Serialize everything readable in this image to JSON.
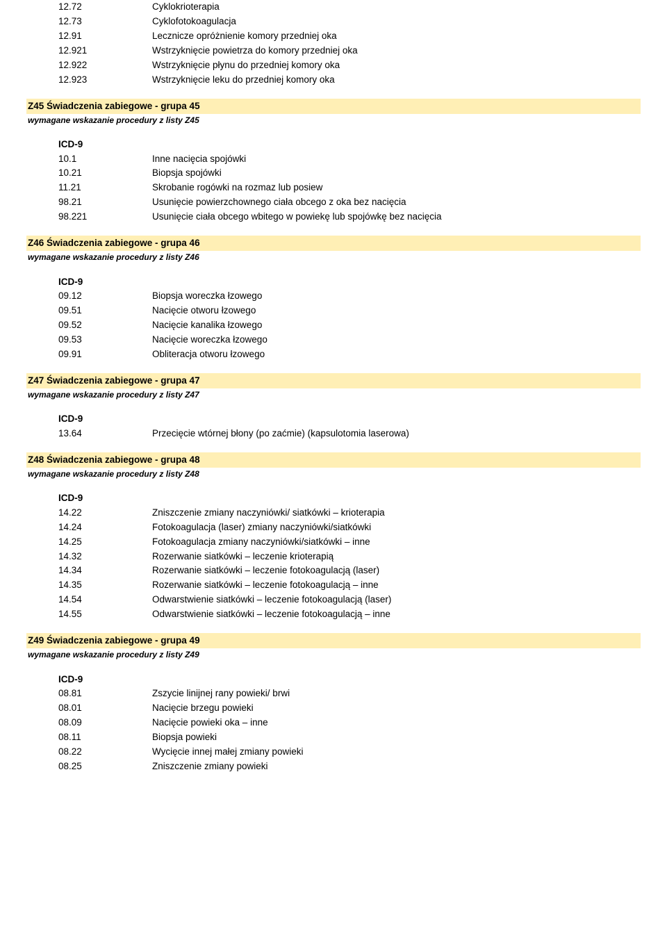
{
  "top_rows": [
    {
      "code": "12.72",
      "desc": "Cyklokrioterapia"
    },
    {
      "code": "12.73",
      "desc": "Cyklofotokoagulacja"
    },
    {
      "code": "12.91",
      "desc": "Lecznicze opróżnienie komory przedniej oka"
    },
    {
      "code": "12.921",
      "desc": "Wstrzyknięcie powietrza do komory przedniej oka"
    },
    {
      "code": "12.922",
      "desc": "Wstrzyknięcie płynu do przedniej komory oka"
    },
    {
      "code": "12.923",
      "desc": "Wstrzyknięcie leku do przedniej komory oka"
    }
  ],
  "sections": [
    {
      "title": "Z45 Świadczenia zabiegowe - grupa 45",
      "requirement": "wymagane wskazanie procedury z listy Z45",
      "icd_label": "ICD-9",
      "rows": [
        {
          "code": "10.1",
          "desc": "Inne nacięcia spojówki"
        },
        {
          "code": "10.21",
          "desc": "Biopsja spojówki"
        },
        {
          "code": "11.21",
          "desc": "Skrobanie rogówki na rozmaz lub posiew"
        },
        {
          "code": "98.21",
          "desc": "Usunięcie powierzchownego ciała obcego z oka bez nacięcia"
        },
        {
          "code": "98.221",
          "desc": "Usunięcie ciała obcego wbitego w powiekę lub spojówkę bez nacięcia"
        }
      ]
    },
    {
      "title": "Z46 Świadczenia zabiegowe - grupa 46",
      "requirement": "wymagane wskazanie procedury z listy Z46",
      "icd_label": "ICD-9",
      "rows": [
        {
          "code": "09.12",
          "desc": "Biopsja woreczka łzowego"
        },
        {
          "code": "09.51",
          "desc": "Nacięcie otworu łzowego"
        },
        {
          "code": "09.52",
          "desc": "Nacięcie kanalika łzowego"
        },
        {
          "code": "09.53",
          "desc": "Nacięcie woreczka łzowego"
        },
        {
          "code": "09.91",
          "desc": "Obliteracja otworu łzowego"
        }
      ]
    },
    {
      "title": "Z47 Świadczenia zabiegowe - grupa 47",
      "requirement": "wymagane wskazanie procedury z listy Z47",
      "icd_label": "ICD-9",
      "rows": [
        {
          "code": "13.64",
          "desc": "Przecięcie wtórnej błony (po zaćmie) (kapsulotomia laserowa)"
        }
      ]
    },
    {
      "title": "Z48 Świadczenia zabiegowe - grupa 48",
      "requirement": "wymagane wskazanie procedury z listy Z48",
      "icd_label": "ICD-9",
      "rows": [
        {
          "code": "14.22",
          "desc": "Zniszczenie zmiany naczyniówki/ siatkówki – krioterapia"
        },
        {
          "code": "14.24",
          "desc": "Fotokoagulacja (laser) zmiany naczyniówki/siatkówki"
        },
        {
          "code": "14.25",
          "desc": "Fotokoagulacja zmiany naczyniówki/siatkówki – inne"
        },
        {
          "code": "14.32",
          "desc": "Rozerwanie siatkówki – leczenie krioterapią"
        },
        {
          "code": "14.34",
          "desc": "Rozerwanie siatkówki – leczenie fotokoagulacją (laser)"
        },
        {
          "code": "14.35",
          "desc": "Rozerwanie siatkówki – leczenie fotokoagulacją – inne"
        },
        {
          "code": "14.54",
          "desc": "Odwarstwienie siatkówki – leczenie fotokoagulacją (laser)"
        },
        {
          "code": "14.55",
          "desc": "Odwarstwienie siatkówki – leczenie fotokoagulacją – inne"
        }
      ]
    },
    {
      "title": "Z49 Świadczenia zabiegowe - grupa 49",
      "requirement": "wymagane wskazanie procedury z listy Z49",
      "icd_label": "ICD-9",
      "rows": [
        {
          "code": "08.81",
          "desc": "Zszycie linijnej rany powieki/ brwi"
        },
        {
          "code": "08.01",
          "desc": "Nacięcie brzegu powieki"
        },
        {
          "code": "08.09",
          "desc": "Nacięcie powieki oka – inne"
        },
        {
          "code": "08.11",
          "desc": "Biopsja powieki"
        },
        {
          "code": "08.22",
          "desc": "Wycięcie innej małej zmiany powieki"
        },
        {
          "code": "08.25",
          "desc": "Zniszczenie zmiany powieki"
        }
      ]
    }
  ]
}
